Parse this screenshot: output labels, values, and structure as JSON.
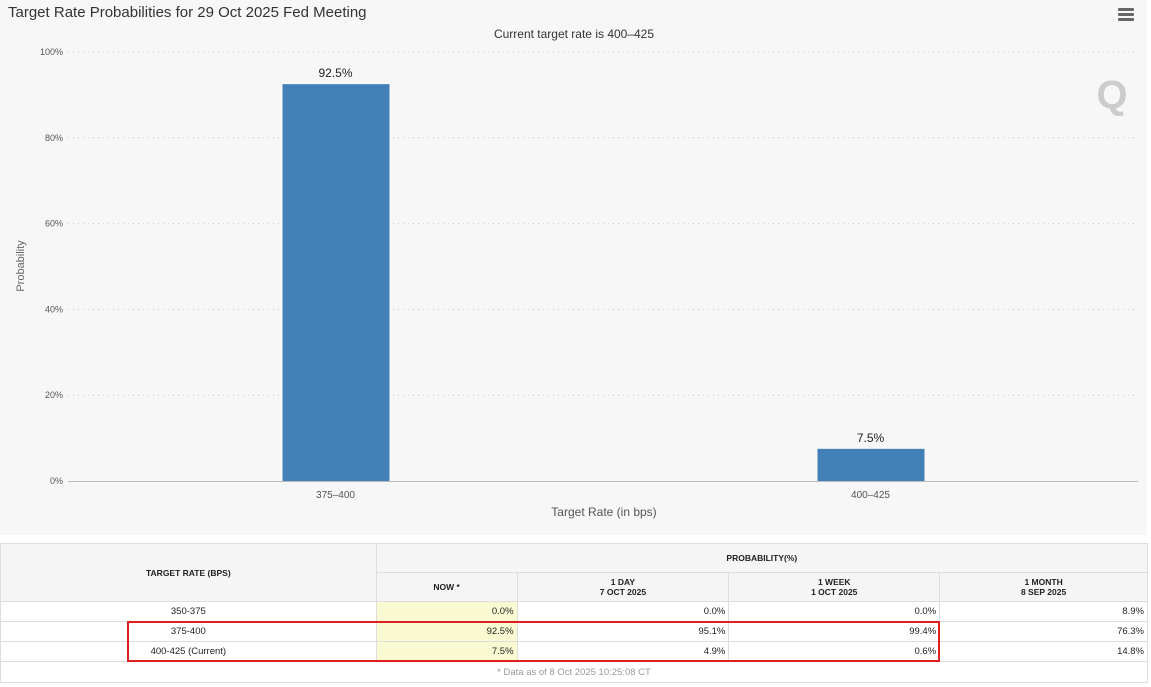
{
  "header": {
    "title": "Target Rate Probabilities for 29 Oct 2025 Fed Meeting",
    "menu_icon": "hamburger-icon"
  },
  "chart_data": {
    "type": "bar",
    "title": "Target Rate Probabilities for 29 Oct 2025 Fed Meeting",
    "subtitle": "Current target rate is 400–425",
    "categories": [
      "375–400",
      "400–425"
    ],
    "values": [
      92.5,
      7.5
    ],
    "data_labels": [
      "92.5%",
      "7.5%"
    ],
    "xlabel": "Target Rate (in bps)",
    "ylabel": "Probability",
    "ylim": [
      0,
      100
    ],
    "yticks": [
      "0%",
      "20%",
      "40%",
      "60%",
      "80%",
      "100%"
    ],
    "grid": true,
    "color": "#4480b8"
  },
  "table": {
    "col_rate": "TARGET RATE (BPS)",
    "col_prob": "PROBABILITY(%)",
    "subcols": [
      {
        "l1": "NOW *",
        "l2": ""
      },
      {
        "l1": "1 DAY",
        "l2": "7 OCT 2025"
      },
      {
        "l1": "1 WEEK",
        "l2": "1 OCT 2025"
      },
      {
        "l1": "1 MONTH",
        "l2": "8 SEP 2025"
      }
    ],
    "rows": [
      {
        "rate": "350-375",
        "v": [
          "0.0%",
          "0.0%",
          "0.0%",
          "8.9%"
        ]
      },
      {
        "rate": "375-400",
        "v": [
          "92.5%",
          "95.1%",
          "99.4%",
          "76.3%"
        ]
      },
      {
        "rate": "400-425 (Current)",
        "v": [
          "7.5%",
          "4.9%",
          "0.6%",
          "14.8%"
        ]
      }
    ],
    "footnote": "* Data as of 8 Oct 2025 10:25:08 CT"
  }
}
